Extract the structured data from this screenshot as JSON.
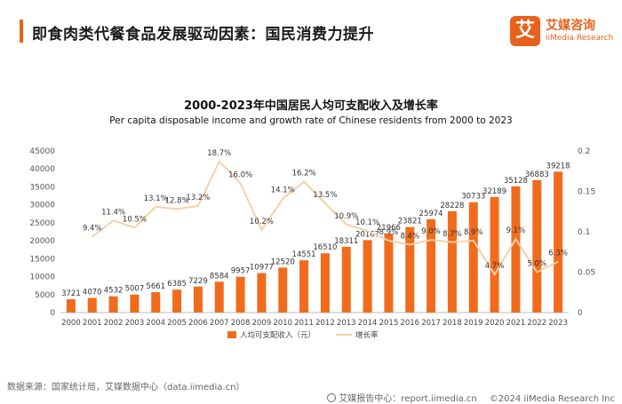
{
  "header": {
    "title": "即食肉类代餐食品发展驱动因素：国民消费力提升",
    "logo_mark": "艾",
    "logo_cn": "艾媒咨询",
    "logo_en": "iiMedia Research"
  },
  "footer": {
    "source": "数据来源：国家统计局，艾媒数据中心（data.iimedia.cn）",
    "center": "艾媒报告中心：report.iimedia.cn",
    "copyright": "©2024  iiMedia Research  Inc"
  },
  "colors": {
    "bar": "#f26b1d",
    "line": "#f7cfa6",
    "accent": "#e8611c"
  },
  "chart_data": {
    "type": "bar",
    "title": "2000-2023年中国居民人均可支配收入及增长率",
    "subtitle": "Per capita disposable income and growth rate of Chinese residents from 2000 to 2023",
    "categories": [
      "2000",
      "2001",
      "2002",
      "2003",
      "2004",
      "2005",
      "2006",
      "2007",
      "2008",
      "2009",
      "2010",
      "2011",
      "2012",
      "2013",
      "2014",
      "2015",
      "2016",
      "2017",
      "2018",
      "2019",
      "2020",
      "2021",
      "2022",
      "2023"
    ],
    "series": [
      {
        "name": "人均可支配收入（元）",
        "type": "bar",
        "axis": "left",
        "values": [
          3721,
          4070,
          4532,
          5007,
          5661,
          6385,
          7229,
          8584,
          9957,
          10977,
          12520,
          14551,
          16510,
          18311,
          20167,
          21966,
          23821,
          25974,
          28228,
          30733,
          32189,
          35128,
          36883,
          39218
        ]
      },
      {
        "name": "增长率",
        "type": "line",
        "axis": "right",
        "values": [
          null,
          0.094,
          0.114,
          0.105,
          0.131,
          0.128,
          0.132,
          0.187,
          0.16,
          0.102,
          0.141,
          0.162,
          0.135,
          0.109,
          0.101,
          0.089,
          0.084,
          0.09,
          0.087,
          0.089,
          0.047,
          0.091,
          0.05,
          0.063
        ],
        "labels": [
          "",
          "9.4%",
          "11.4%",
          "10.5%",
          "13.1%",
          "12.8%",
          "13.2%",
          "18.7%",
          "16.0%",
          "10.2%",
          "14.1%",
          "16.2%",
          "13.5%",
          "10.9%",
          "10.1%",
          "8.9%",
          "8.4%",
          "9.0%",
          "8.7%",
          "8.9%",
          "4.7%",
          "9.1%",
          "5.0%",
          "6.3%"
        ]
      }
    ],
    "left_axis": {
      "ylim": [
        0,
        45000
      ],
      "ticks": [
        "0",
        "5000",
        "10000",
        "15000",
        "20000",
        "25000",
        "30000",
        "35000",
        "40000",
        "45000"
      ]
    },
    "right_axis": {
      "ylim": [
        0,
        0.2
      ],
      "ticks": [
        "0",
        "0.05",
        "0.1",
        "0.15",
        "0.2"
      ]
    },
    "grid": false,
    "legend": "bottom-center"
  }
}
